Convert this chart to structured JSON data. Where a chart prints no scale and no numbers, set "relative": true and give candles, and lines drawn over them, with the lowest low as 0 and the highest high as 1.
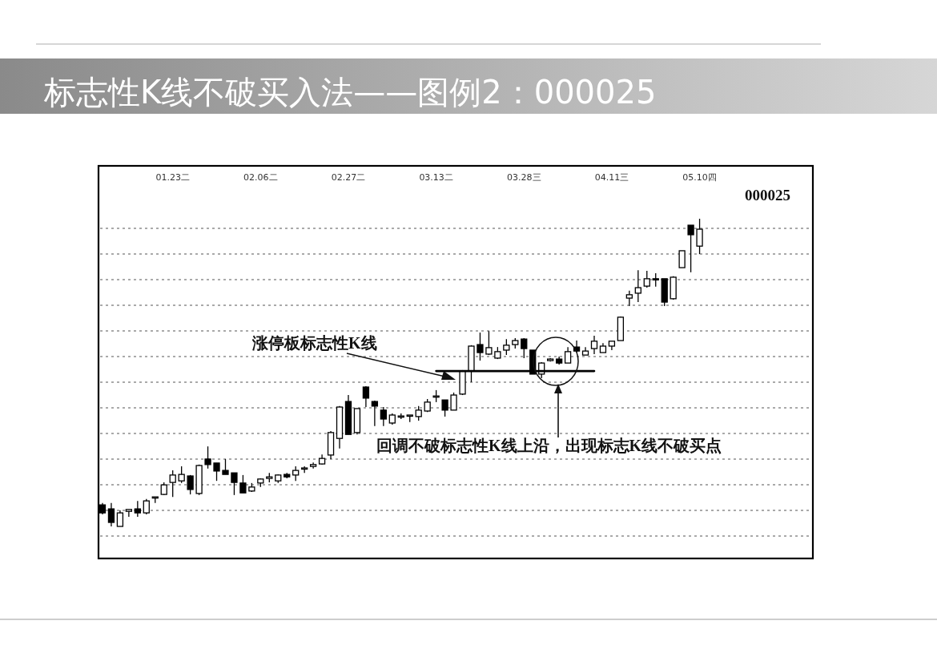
{
  "chart_data": {
    "type": "candlestick",
    "title": "标志性K线不破买入法——图例2：000025",
    "relative": true,
    "grid": "y",
    "categories": [
      null,
      null,
      null,
      null,
      null,
      null,
      null,
      null,
      "01.23二",
      null,
      null,
      null,
      null,
      null,
      null,
      null,
      null,
      null,
      "02.06二",
      null,
      null,
      null,
      null,
      null,
      null,
      null,
      null,
      null,
      "02.27二",
      null,
      null,
      null,
      null,
      null,
      null,
      null,
      null,
      null,
      "03.13二",
      null,
      null,
      null,
      null,
      null,
      null,
      null,
      null,
      null,
      "03.28三",
      null,
      null,
      null,
      null,
      null,
      null,
      null,
      null,
      null,
      "04.11三",
      null,
      null,
      null,
      null,
      null,
      null,
      null,
      null,
      null,
      "05.10四"
    ],
    "ohlc": [
      [
        0.07,
        0.076,
        0.039,
        0.044
      ],
      [
        0.057,
        0.076,
        0,
        0.013
      ],
      [
        0,
        0.052,
        0,
        0.044
      ],
      [
        0.049,
        0.055,
        0.031,
        0.055
      ],
      [
        0.057,
        0.083,
        0.031,
        0.044
      ],
      [
        0.044,
        0.089,
        0.039,
        0.083
      ],
      [
        0.094,
        0.096,
        0.076,
        0.096
      ],
      [
        0.104,
        0.143,
        0.102,
        0.135
      ],
      [
        0.143,
        0.182,
        0.096,
        0.167
      ],
      [
        0.148,
        0.195,
        0.141,
        0.169
      ],
      [
        0.164,
        0.167,
        0.104,
        0.12
      ],
      [
        0.107,
        0.201,
        0.102,
        0.198
      ],
      [
        0.219,
        0.26,
        0.188,
        0.201
      ],
      [
        0.206,
        0.206,
        0.148,
        0.18
      ],
      [
        0.182,
        0.219,
        0.169,
        0.169
      ],
      [
        0.174,
        0.174,
        0.102,
        0.143
      ],
      [
        0.141,
        0.167,
        0.109,
        0.109
      ],
      [
        0.115,
        0.141,
        0.112,
        0.128
      ],
      [
        0.141,
        0.156,
        0.128,
        0.154
      ],
      [
        0.156,
        0.174,
        0.143,
        0.161
      ],
      [
        0.148,
        0.169,
        0.141,
        0.167
      ],
      [
        0.169,
        0.174,
        0.156,
        0.161
      ],
      [
        0.167,
        0.195,
        0.148,
        0.182
      ],
      [
        0.188,
        0.195,
        0.174,
        0.19
      ],
      [
        0.195,
        0.208,
        0.188,
        0.201
      ],
      [
        0.203,
        0.234,
        0.201,
        0.221
      ],
      [
        0.232,
        0.31,
        0.219,
        0.305
      ],
      [
        0.286,
        0.391,
        0.253,
        0.388
      ],
      [
        0.406,
        0.427,
        0.299,
        0.299
      ],
      [
        0.305,
        0.383,
        0.299,
        0.383
      ],
      [
        0.453,
        0.456,
        0.388,
        0.417
      ],
      [
        0.406,
        0.409,
        0.326,
        0.391
      ],
      [
        0.378,
        0.388,
        0.326,
        0.349
      ],
      [
        0.336,
        0.367,
        0.331,
        0.362
      ],
      [
        0.357,
        0.367,
        0.349,
        0.359
      ],
      [
        0.359,
        0.362,
        0.339,
        0.362
      ],
      [
        0.357,
        0.391,
        0.344,
        0.378
      ],
      [
        0.375,
        0.414,
        0.372,
        0.404
      ],
      [
        0.422,
        0.443,
        0.404,
        0.424
      ],
      [
        0.411,
        0.411,
        0.357,
        0.378
      ],
      [
        0.378,
        0.435,
        0.378,
        0.427
      ],
      [
        0.43,
        0.508,
        0.427,
        0.505
      ],
      [
        0.505,
        0.589,
        0.469,
        0.586
      ],
      [
        0.591,
        0.63,
        0.539,
        0.565
      ],
      [
        0.56,
        0.635,
        0.557,
        0.581
      ],
      [
        0.547,
        0.583,
        0.544,
        0.568
      ],
      [
        0.573,
        0.609,
        0.557,
        0.589
      ],
      [
        0.591,
        0.612,
        0.578,
        0.604
      ],
      [
        0.609,
        0.612,
        0.547,
        0.578
      ],
      [
        0.573,
        0.573,
        0.495,
        0.495
      ],
      [
        0.495,
        0.534,
        0.482,
        0.531
      ],
      [
        0.539,
        0.547,
        0.536,
        0.544
      ],
      [
        0.544,
        0.552,
        0.526,
        0.531
      ],
      [
        0.531,
        0.583,
        0.531,
        0.568
      ],
      [
        0.583,
        0.604,
        0.565,
        0.57
      ],
      [
        0.557,
        0.583,
        0.557,
        0.57
      ],
      [
        0.578,
        0.62,
        0.56,
        0.602
      ],
      [
        0.565,
        0.596,
        0.565,
        0.586
      ],
      [
        0.586,
        0.602,
        0.573,
        0.602
      ],
      [
        0.604,
        0.682,
        0.604,
        0.68
      ],
      [
        0.742,
        0.766,
        0.716,
        0.753
      ],
      [
        0.758,
        0.833,
        0.729,
        0.776
      ],
      [
        0.781,
        0.831,
        0.776,
        0.805
      ],
      [
        0.805,
        0.823,
        0.779,
        0.802
      ],
      [
        0.805,
        0.805,
        0.716,
        0.729
      ],
      [
        0.74,
        0.813,
        0.737,
        0.81
      ],
      [
        0.841,
        0.896,
        0.841,
        0.896
      ],
      [
        0.979,
        0.979,
        0.826,
        0.948
      ],
      [
        0.911,
        1,
        0.885,
        0.966
      ]
    ],
    "series": [
      {
        "type": "line",
        "color": "#000000",
        "values": [
          null,
          null,
          null,
          null,
          null,
          null,
          null,
          null,
          null,
          null,
          null,
          null,
          null,
          null,
          null,
          null,
          null,
          null,
          null,
          null,
          null,
          null,
          null,
          null,
          null,
          null,
          null,
          null,
          null,
          null,
          null,
          null,
          null,
          null,
          null,
          null,
          null,
          null,
          0.505,
          0.505,
          0.505,
          0.505,
          0.505,
          0.505,
          0.505,
          0.505,
          0.505,
          0.505,
          0.505,
          0.505,
          0.505,
          0.505,
          0.505,
          0.505,
          0.505,
          0.505,
          0.505,
          null,
          null,
          null,
          null,
          null,
          null,
          null,
          null,
          null,
          null,
          null,
          null
        ]
      }
    ],
    "annotations": [
      "000025",
      "涨停板标志性K线",
      "回调不破标志性K线上沿，出现标志K线不破买点"
    ]
  }
}
